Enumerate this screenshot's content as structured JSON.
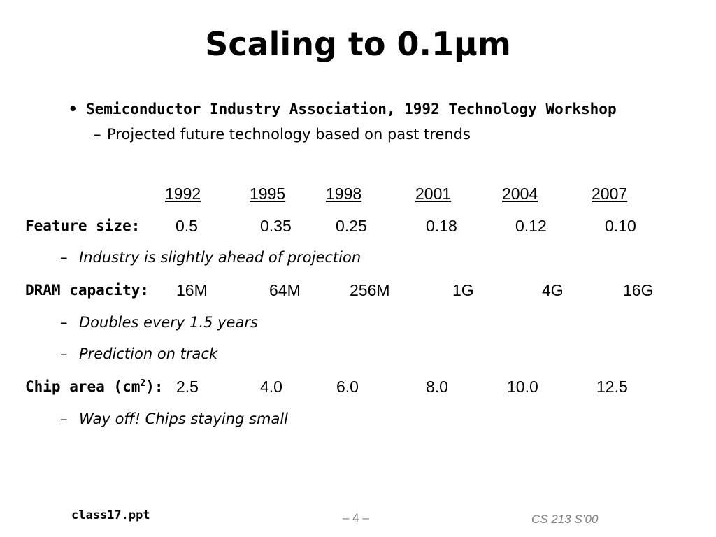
{
  "slide": {
    "title": "Scaling to 0.1µm",
    "bullet": {
      "text": "Semiconductor Industry Association, 1992 Technology Workshop",
      "sub": "Projected future technology based on past trends"
    },
    "table": {
      "years": [
        "1992",
        "1995",
        "1998",
        "2001",
        "2004",
        "2007"
      ],
      "feature_size": {
        "label": "Feature size:",
        "values": [
          "0.5",
          "0.35",
          "0.25",
          "0.18",
          "0.12",
          "0.10"
        ],
        "note": "Industry is slightly ahead of projection"
      },
      "dram": {
        "label": "DRAM capacity:",
        "values": [
          "16M",
          "64M",
          "256M",
          "1G",
          "4G",
          "16G"
        ],
        "notes": [
          "Doubles every 1.5 years",
          "Prediction on track"
        ]
      },
      "chip_area": {
        "label_main": "Chip area (cm",
        "label_sup": "2",
        "label_end": "):",
        "values": [
          "2.5",
          "4.0",
          "6.0",
          "8.0",
          "10.0",
          "12.5"
        ],
        "note": "Way off!  Chips staying small"
      }
    },
    "footer": {
      "file": "class17.ppt",
      "page": "– 4 –",
      "course": "CS 213 S’00"
    }
  }
}
